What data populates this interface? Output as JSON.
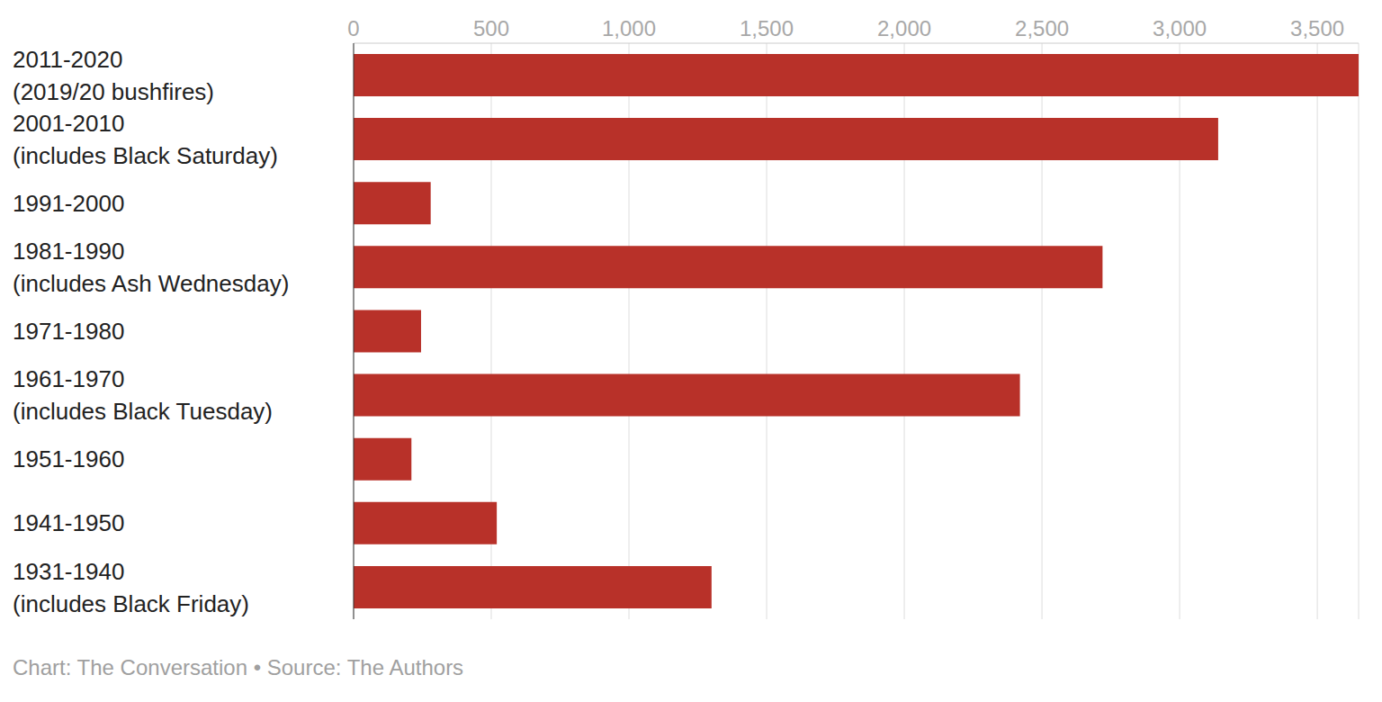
{
  "chart_data": {
    "type": "bar",
    "orientation": "horizontal",
    "categories": [
      "2011-2020\n(2019/20 bushfires)",
      "2001-2010\n(includes Black Saturday)",
      "1991-2000",
      "1981-1990\n(includes Ash Wednesday)",
      "1971-1980",
      "1961-1970\n(includes Black Tuesday)",
      "1951-1960",
      "1941-1950",
      "1931-1940\n(includes Black Friday)"
    ],
    "values": [
      3650,
      3140,
      280,
      2720,
      245,
      2420,
      210,
      520,
      1300
    ],
    "color": "#b83129",
    "xlim": [
      0,
      3650
    ],
    "xticks": [
      0,
      500,
      {
        "value": 1000,
        "label": "1,000"
      },
      {
        "value": 1500,
        "label": "1,500"
      },
      {
        "value": 2000,
        "label": "2,000"
      },
      {
        "value": 2500,
        "label": "2,500"
      },
      {
        "value": 3000,
        "label": "3,000"
      },
      {
        "value": 3500,
        "label": "3,500"
      }
    ],
    "grid": true,
    "caption": "Chart: The Conversation • Source: The Authors"
  }
}
